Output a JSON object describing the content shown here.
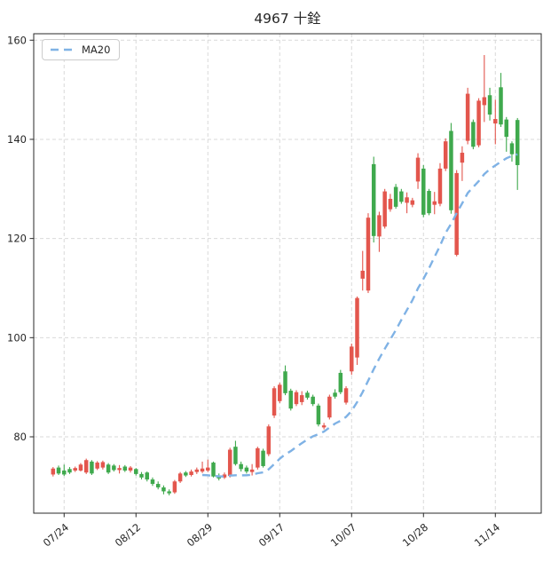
{
  "title": "4967 十銓",
  "legend": {
    "label": "MA20"
  },
  "colors": {
    "up": "#e3564d",
    "down": "#3fa94d",
    "ma": "#7fb2e5",
    "grid": "#d9d9d9",
    "text": "#262626",
    "spine": "#2a2a2a",
    "background": "#ffffff"
  },
  "chart_data": {
    "type": "candlestick",
    "title": "4967 十銓",
    "legend": [
      "MA20"
    ],
    "grid": "dashed, both axes at major ticks",
    "legend_position": "upper left",
    "x_tick_labels": [
      "07/24",
      "08/12",
      "08/29",
      "09/17",
      "10/07",
      "10/28",
      "11/14"
    ],
    "x_tick_indices": [
      2,
      15,
      28,
      41,
      54,
      67,
      80
    ],
    "y_ticks": [
      80,
      100,
      120,
      140,
      160
    ],
    "ylim": [
      64.6,
      161.3
    ],
    "xlim": [
      -3.5,
      88.3
    ],
    "up_means": "close>open (red)",
    "down_means": "close<open (green)",
    "ma20": {
      "label": "MA20",
      "window": 20,
      "start_index": 27,
      "style": "dashed"
    },
    "candles_format": [
      "open",
      "high",
      "low",
      "close"
    ],
    "candles": [
      [
        72.4,
        73.9,
        72.0,
        73.6
      ],
      [
        73.8,
        74.2,
        72.3,
        72.6
      ],
      [
        73.2,
        74.4,
        72.1,
        72.4
      ],
      [
        73.5,
        73.9,
        72.5,
        72.8
      ],
      [
        73.2,
        74.0,
        72.9,
        73.7
      ],
      [
        73.2,
        74.7,
        73.0,
        74.4
      ],
      [
        72.8,
        75.6,
        72.5,
        75.3
      ],
      [
        75.0,
        75.3,
        72.3,
        72.6
      ],
      [
        73.6,
        75.1,
        73.3,
        74.8
      ],
      [
        73.8,
        75.2,
        73.4,
        74.9
      ],
      [
        74.4,
        74.7,
        72.5,
        72.8
      ],
      [
        74.2,
        74.5,
        73.0,
        73.3
      ],
      [
        73.3,
        74.3,
        72.6,
        73.7
      ],
      [
        74.0,
        74.3,
        72.9,
        73.2
      ],
      [
        73.2,
        74.1,
        72.8,
        73.8
      ],
      [
        73.5,
        73.7,
        72.2,
        72.5
      ],
      [
        72.5,
        72.9,
        71.4,
        71.8
      ],
      [
        72.8,
        73.0,
        71.0,
        71.4
      ],
      [
        71.4,
        71.8,
        70.1,
        70.5
      ],
      [
        70.5,
        71.0,
        69.4,
        69.8
      ],
      [
        69.8,
        70.2,
        68.4,
        69.0
      ],
      [
        69.0,
        69.4,
        68.2,
        68.6
      ],
      [
        68.8,
        71.3,
        68.5,
        71.0
      ],
      [
        71.0,
        72.9,
        70.7,
        72.6
      ],
      [
        72.8,
        73.1,
        71.9,
        72.2
      ],
      [
        72.3,
        73.4,
        72.0,
        73.0
      ],
      [
        72.9,
        73.8,
        72.5,
        73.4
      ],
      [
        73.0,
        75.0,
        72.7,
        73.6
      ],
      [
        73.2,
        75.4,
        72.9,
        73.8
      ],
      [
        74.8,
        75.0,
        71.8,
        72.0
      ],
      [
        72.2,
        72.6,
        71.2,
        71.6
      ],
      [
        71.8,
        72.8,
        71.5,
        72.4
      ],
      [
        72.1,
        77.8,
        71.8,
        77.4
      ],
      [
        78.0,
        79.2,
        74.2,
        74.5
      ],
      [
        74.5,
        75.0,
        73.0,
        73.5
      ],
      [
        73.8,
        74.2,
        72.6,
        73.0
      ],
      [
        72.9,
        74.5,
        72.2,
        73.4
      ],
      [
        73.8,
        78.0,
        73.4,
        77.7
      ],
      [
        77.2,
        77.6,
        73.8,
        74.1
      ],
      [
        76.5,
        82.5,
        76.1,
        82.1
      ],
      [
        84.3,
        90.2,
        83.8,
        89.8
      ],
      [
        87.2,
        90.9,
        86.8,
        90.5
      ],
      [
        93.2,
        94.4,
        88.4,
        88.8
      ],
      [
        89.3,
        89.7,
        85.3,
        85.7
      ],
      [
        86.6,
        89.4,
        86.2,
        89.0
      ],
      [
        87.0,
        89.2,
        86.4,
        88.4
      ],
      [
        88.9,
        89.3,
        87.5,
        87.9
      ],
      [
        88.1,
        88.5,
        86.2,
        86.6
      ],
      [
        86.3,
        86.7,
        82.1,
        82.5
      ],
      [
        81.9,
        82.8,
        81.5,
        82.3
      ],
      [
        83.9,
        88.5,
        83.5,
        88.1
      ],
      [
        88.9,
        89.6,
        87.7,
        88.1
      ],
      [
        92.9,
        93.5,
        88.6,
        89.0
      ],
      [
        86.9,
        90.2,
        86.5,
        89.8
      ],
      [
        93.2,
        98.8,
        92.5,
        98.2
      ],
      [
        96.0,
        108.3,
        94.5,
        108.0
      ],
      [
        111.9,
        117.5,
        109.5,
        113.5
      ],
      [
        109.5,
        125.1,
        109.0,
        124.2
      ],
      [
        135.0,
        136.5,
        119.2,
        120.5
      ],
      [
        120.4,
        125.4,
        117.3,
        124.7
      ],
      [
        122.4,
        130.0,
        122.0,
        129.5
      ],
      [
        125.9,
        129.0,
        125.4,
        128.0
      ],
      [
        130.4,
        131.0,
        126.0,
        126.4
      ],
      [
        129.5,
        130.0,
        127.0,
        127.4
      ],
      [
        127.2,
        129.3,
        125.1,
        128.3
      ],
      [
        126.8,
        128.2,
        126.3,
        127.7
      ],
      [
        131.5,
        137.2,
        130.0,
        136.3
      ],
      [
        134.1,
        134.8,
        124.3,
        124.8
      ],
      [
        129.6,
        130.0,
        124.7,
        125.1
      ],
      [
        126.8,
        129.4,
        124.9,
        127.5
      ],
      [
        127.0,
        135.2,
        126.5,
        134.1
      ],
      [
        134.1,
        140.2,
        133.6,
        139.6
      ],
      [
        141.7,
        143.3,
        125.0,
        125.7
      ],
      [
        116.7,
        133.8,
        116.4,
        133.2
      ],
      [
        135.3,
        138.6,
        131.6,
        137.3
      ],
      [
        139.7,
        150.4,
        139.0,
        149.2
      ],
      [
        143.5,
        144.0,
        138.0,
        138.5
      ],
      [
        138.8,
        148.3,
        138.4,
        147.8
      ],
      [
        146.9,
        157.0,
        143.5,
        148.5
      ],
      [
        148.9,
        150.4,
        143.8,
        145.0
      ],
      [
        143.2,
        148.0,
        139.0,
        144.1
      ],
      [
        150.5,
        153.4,
        142.5,
        143.0
      ],
      [
        144.0,
        144.5,
        137.5,
        140.5
      ],
      [
        139.2,
        139.6,
        135.5,
        137.0
      ],
      [
        143.9,
        144.3,
        129.8,
        134.8
      ]
    ]
  }
}
